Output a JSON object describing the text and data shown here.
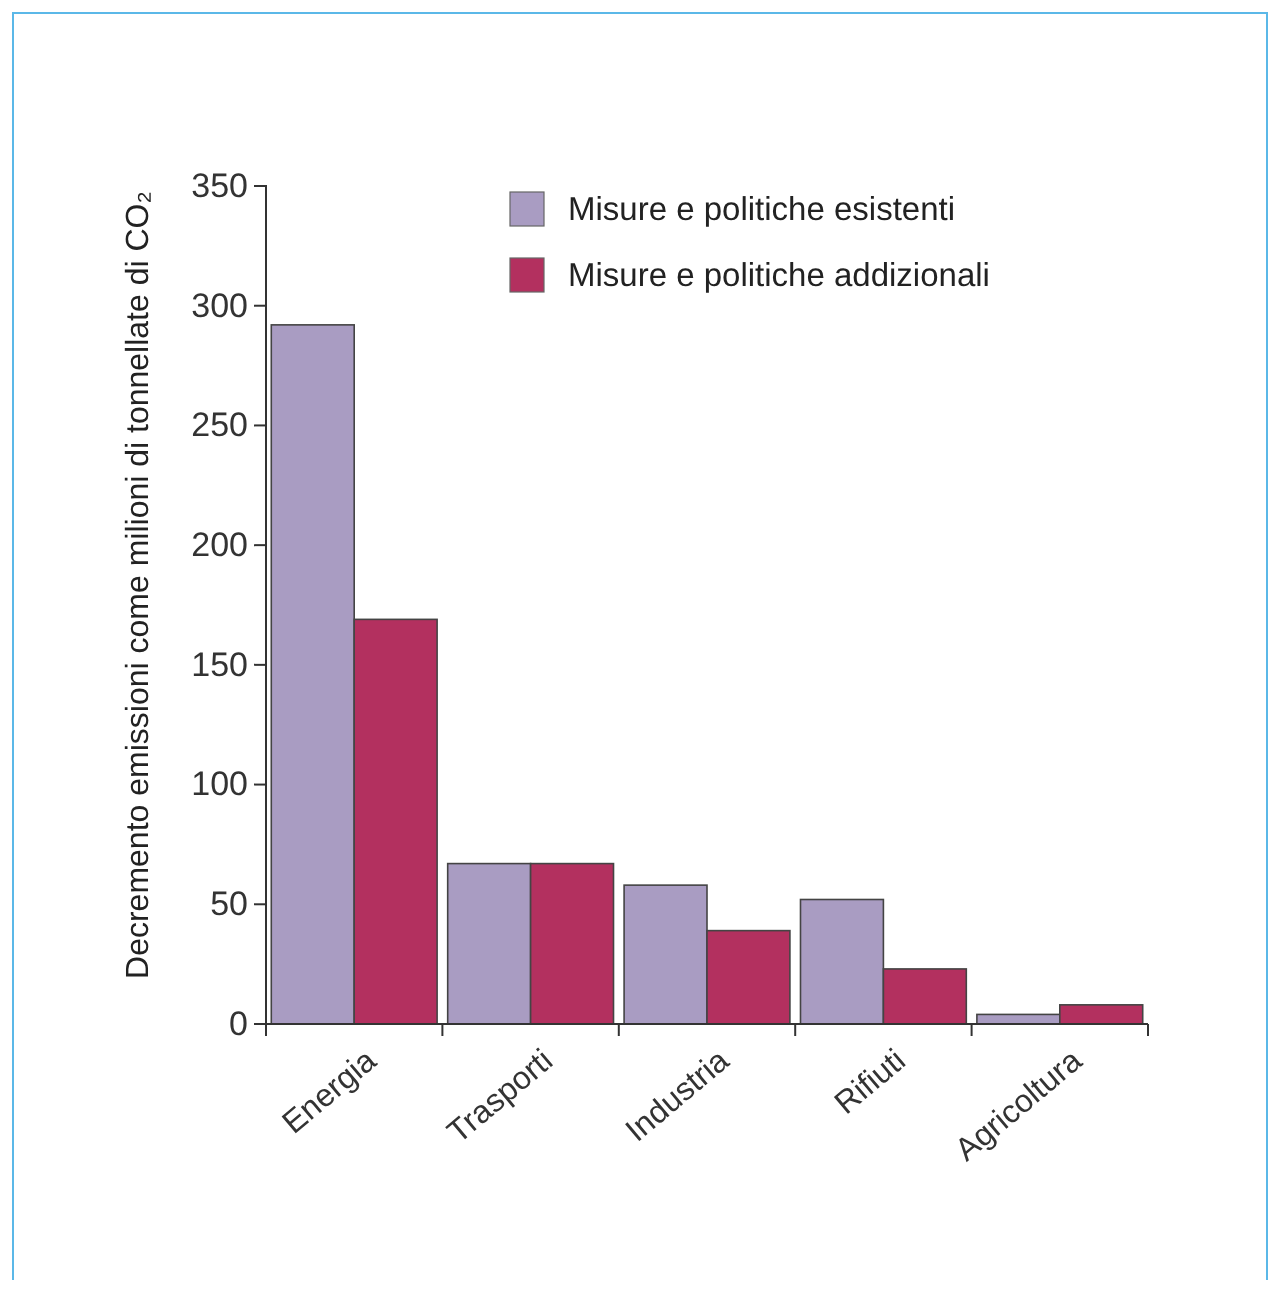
{
  "chart_data": {
    "type": "bar",
    "ylabel": "Decremento emissioni come milioni di tonnellate di CO₂",
    "categories": [
      "Energia",
      "Trasporti",
      "Industria",
      "Rifiuti",
      "Agricoltura"
    ],
    "series": [
      {
        "name": "Misure e politiche esistenti",
        "color": "#a99cc2",
        "values": [
          292,
          67,
          58,
          52,
          4
        ]
      },
      {
        "name": "Misure e politiche addizionali",
        "color": "#b3305f",
        "values": [
          169,
          67,
          39,
          23,
          8
        ]
      }
    ],
    "ylim": [
      0,
      350
    ],
    "yticks": [
      0,
      50,
      100,
      150,
      200,
      250,
      300,
      350
    ],
    "legend": "top right",
    "grid": false
  }
}
